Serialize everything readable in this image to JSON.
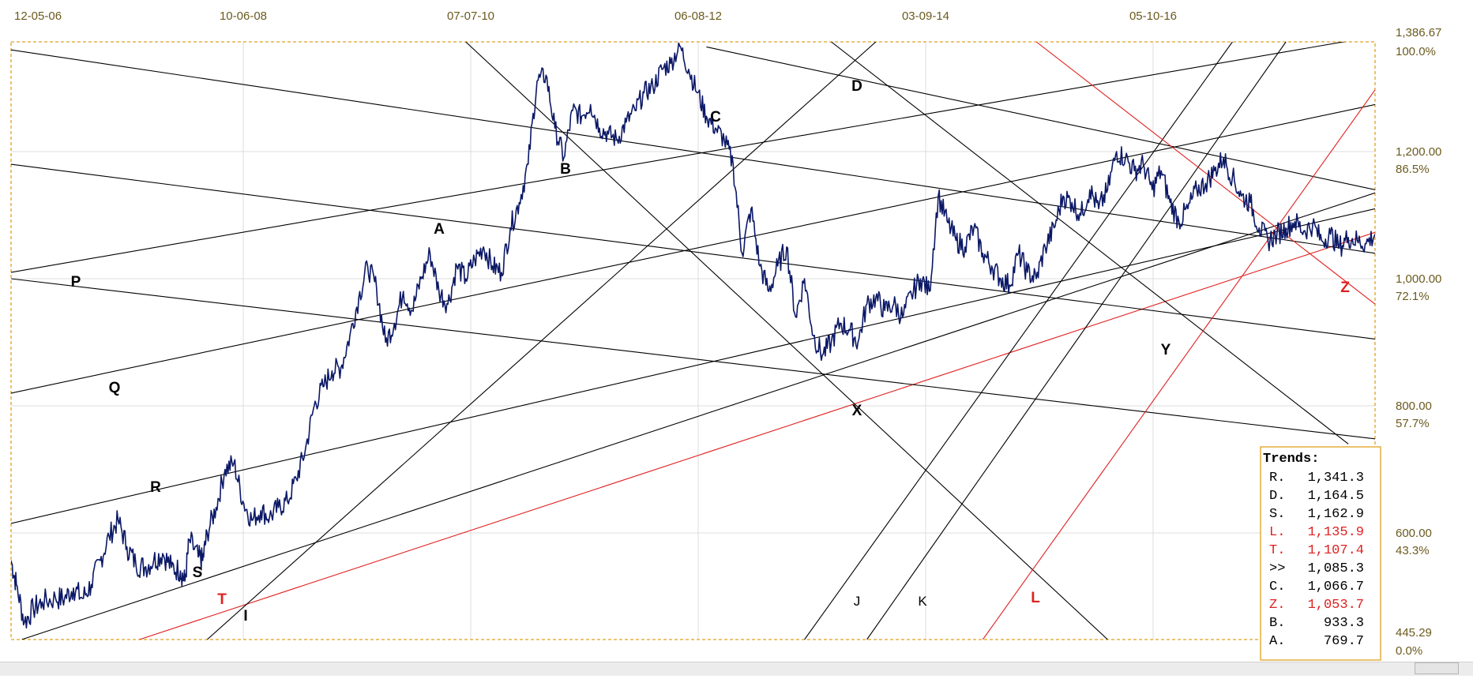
{
  "chart_data": {
    "type": "line",
    "title": "",
    "xlabel": "",
    "ylabel": "",
    "x_tick_labels": [
      "12-05-06",
      "10-06-08",
      "07-07-10",
      "06-08-12",
      "03-09-14",
      "05-10-16"
    ],
    "y_ticks": [
      {
        "value": "1,386.67",
        "pct": "100.0%"
      },
      {
        "value": "1,200.00",
        "pct": "86.5%"
      },
      {
        "value": "1,000.00",
        "pct": "72.1%"
      },
      {
        "value": "800.00",
        "pct": "57.7%"
      },
      {
        "value": "600.00",
        "pct": "43.3%"
      },
      {
        "value": "445.29",
        "pct": "0.0%"
      }
    ],
    "ylim": [
      445.29,
      1386.67
    ],
    "grid": true,
    "price_series": {
      "color": "#0b1866",
      "points": [
        [
          0.0,
          560
        ],
        [
          0.6,
          525
        ],
        [
          1.5,
          470
        ],
        [
          2.5,
          490
        ],
        [
          3.5,
          500
        ],
        [
          5,
          505
        ],
        [
          6,
          505
        ],
        [
          7,
          520
        ],
        [
          8,
          505
        ],
        [
          9,
          525
        ],
        [
          10,
          560
        ],
        [
          11,
          595
        ],
        [
          12,
          620
        ],
        [
          13,
          580
        ],
        [
          14,
          555
        ],
        [
          15,
          550
        ],
        [
          16,
          560
        ],
        [
          17,
          570
        ],
        [
          18,
          550
        ],
        [
          19,
          545
        ],
        [
          19.5,
          530
        ],
        [
          20,
          590
        ],
        [
          21,
          565
        ],
        [
          21.5,
          560
        ],
        [
          22,
          600
        ],
        [
          23,
          640
        ],
        [
          24,
          700
        ],
        [
          25,
          710
        ],
        [
          26,
          650
        ],
        [
          27,
          620
        ],
        [
          28,
          635
        ],
        [
          29,
          625
        ],
        [
          30,
          640
        ],
        [
          31,
          650
        ],
        [
          32,
          685
        ],
        [
          33,
          730
        ],
        [
          34,
          800
        ],
        [
          35,
          830
        ],
        [
          36,
          855
        ],
        [
          37,
          860
        ],
        [
          38,
          910
        ],
        [
          39,
          970
        ],
        [
          40,
          1020
        ],
        [
          41,
          985
        ],
        [
          42,
          900
        ],
        [
          43,
          930
        ],
        [
          44,
          980
        ],
        [
          45,
          950
        ],
        [
          46,
          1000
        ],
        [
          47,
          1040
        ],
        [
          48,
          980
        ],
        [
          49,
          960
        ],
        [
          50,
          1020
        ],
        [
          51,
          1000
        ],
        [
          52,
          1030
        ],
        [
          53,
          1050
        ],
        [
          54,
          1020
        ],
        [
          55,
          1010
        ],
        [
          56,
          1080
        ],
        [
          57,
          1120
        ],
        [
          58,
          1180
        ],
        [
          59,
          1320
        ],
        [
          60,
          1330
        ],
        [
          61,
          1240
        ],
        [
          62,
          1190
        ],
        [
          63,
          1270
        ],
        [
          64,
          1260
        ],
        [
          65,
          1280
        ],
        [
          66,
          1240
        ],
        [
          67,
          1230
        ],
        [
          68,
          1220
        ],
        [
          69,
          1250
        ],
        [
          70,
          1270
        ],
        [
          71,
          1300
        ],
        [
          72,
          1310
        ],
        [
          73,
          1340
        ],
        [
          74,
          1350
        ],
        [
          75,
          1380
        ],
        [
          76,
          1340
        ],
        [
          77,
          1300
        ],
        [
          78,
          1260
        ],
        [
          79,
          1240
        ],
        [
          80,
          1220
        ],
        [
          81,
          1180
        ],
        [
          82,
          1040
        ],
        [
          83,
          1110
        ],
        [
          84,
          1020
        ],
        [
          85,
          980
        ],
        [
          86,
          1020
        ],
        [
          87,
          1050
        ],
        [
          88,
          940
        ],
        [
          89,
          1000
        ],
        [
          90,
          910
        ],
        [
          91,
          880
        ],
        [
          92,
          900
        ],
        [
          93,
          930
        ],
        [
          94,
          920
        ],
        [
          95,
          900
        ],
        [
          96,
          960
        ],
        [
          97,
          970
        ],
        [
          98,
          950
        ],
        [
          99,
          960
        ],
        [
          100,
          940
        ],
        [
          101,
          975
        ],
        [
          102,
          1000
        ],
        [
          103,
          980
        ],
        [
          104,
          1130
        ],
        [
          105,
          1090
        ],
        [
          106,
          1060
        ],
        [
          107,
          1050
        ],
        [
          108,
          1080
        ],
        [
          109,
          1040
        ],
        [
          110,
          1020
        ],
        [
          111,
          1000
        ],
        [
          112,
          990
        ],
        [
          113,
          1040
        ],
        [
          114,
          1010
        ],
        [
          115,
          1000
        ],
        [
          116,
          1050
        ],
        [
          117,
          1080
        ],
        [
          118,
          1130
        ],
        [
          119,
          1120
        ],
        [
          120,
          1100
        ],
        [
          121,
          1140
        ],
        [
          122,
          1110
        ],
        [
          123,
          1140
        ],
        [
          124,
          1200
        ],
        [
          125,
          1190
        ],
        [
          126,
          1170
        ],
        [
          127,
          1180
        ],
        [
          128,
          1140
        ],
        [
          129,
          1170
        ],
        [
          130,
          1120
        ],
        [
          131,
          1090
        ],
        [
          132,
          1110
        ],
        [
          133,
          1140
        ],
        [
          134,
          1150
        ],
        [
          135,
          1170
        ],
        [
          136,
          1190
        ],
        [
          137,
          1160
        ],
        [
          138,
          1130
        ],
        [
          139,
          1120
        ],
        [
          140,
          1080
        ],
        [
          141,
          1060
        ],
        [
          142,
          1070
        ],
        [
          143,
          1080
        ],
        [
          144,
          1090
        ],
        [
          145,
          1075
        ],
        [
          146,
          1085
        ],
        [
          147,
          1060
        ],
        [
          148,
          1070
        ],
        [
          149,
          1050
        ],
        [
          150,
          1065
        ],
        [
          151,
          1060
        ],
        [
          152,
          1055
        ],
        [
          153,
          1070
        ]
      ]
    },
    "trend_lines": [
      {
        "id": "P",
        "label": "P",
        "color": "#000000",
        "label_color": "#000000",
        "x1": 0,
        "y1": 1010,
        "x2": 153,
        "y2": 1396
      },
      {
        "id": "Q",
        "label": "Q",
        "color": "#000000",
        "label_color": "#000000",
        "x1": 0,
        "y1": 820,
        "x2": 153,
        "y2": 1280
      },
      {
        "id": "R",
        "label": "R",
        "color": "#000000",
        "label_color": "#000000",
        "x1": 0,
        "y1": 615,
        "x2": 153,
        "y2": 1110
      },
      {
        "id": "S",
        "label": "S",
        "color": "#000000",
        "label_color": "#000000",
        "x1": 1.2,
        "y1": 445.29,
        "x2": 153,
        "y2": 1135
      },
      {
        "id": "T",
        "label": "T",
        "color": "#e02020",
        "label_color": "#e02020",
        "x1": 14.4,
        "y1": 445.29,
        "x2": 153,
        "y2": 1073
      },
      {
        "id": "D",
        "label": "D",
        "color": "#000000",
        "label_color": "#000000",
        "x1": 78,
        "y1": 1378,
        "x2": 153,
        "y2": 1140
      },
      {
        "id": "C",
        "label": "C",
        "color": "#000000",
        "label_color": "#000000",
        "x1": 0,
        "y1": 1373,
        "x2": 153,
        "y2": 1040
      },
      {
        "id": "A",
        "label": "A",
        "color": "#000000",
        "label_color": "#000000",
        "x1": 0,
        "y1": 1180,
        "x2": 153,
        "y2": 905
      },
      {
        "id": "Y",
        "label": "Y",
        "color": "#000000",
        "label_color": "#000000",
        "x1": 0,
        "y1": 1000,
        "x2": 153,
        "y2": 748
      },
      {
        "id": "I",
        "label": "I",
        "color": "#000000",
        "label_color": "#000000",
        "x1": 22,
        "y1": 445.29,
        "x2": 97,
        "y2": 1386.67
      },
      {
        "id": "B",
        "label": "B",
        "color": "#000000",
        "label_color": "#000000",
        "x1": 51,
        "y1": 1386.67,
        "x2": 123,
        "y2": 445.29
      },
      {
        "id": "X",
        "label": "X",
        "color": "#000000",
        "label_color": "#000000",
        "x1": 92,
        "y1": 1386.67,
        "x2": 150,
        "y2": 740
      },
      {
        "id": "J",
        "label": "J",
        "color": "#000000",
        "label_color": "#000000",
        "x1": 89,
        "y1": 445.29,
        "x2": 137,
        "y2": 1386.67
      },
      {
        "id": "K",
        "label": "K",
        "color": "#000000",
        "label_color": "#000000",
        "x1": 96,
        "y1": 445.29,
        "x2": 143,
        "y2": 1386.67
      },
      {
        "id": "L",
        "label": "L",
        "color": "#e02020",
        "label_color": "#e02020",
        "x1": 109,
        "y1": 445.29,
        "x2": 153,
        "y2": 1305
      },
      {
        "id": "Z",
        "label": "Z",
        "color": "#e02020",
        "label_color": "#e02020",
        "x1": 115,
        "y1": 1386.67,
        "x2": 153,
        "y2": 960
      }
    ],
    "legend": {
      "title": "Trends:",
      "placement": "bottom-right",
      "entries": [
        {
          "key": "R.",
          "value": "1,341.3",
          "color": "#000000"
        },
        {
          "key": "D.",
          "value": "1,164.5",
          "color": "#000000"
        },
        {
          "key": "S.",
          "value": "1,162.9",
          "color": "#000000"
        },
        {
          "key": "L.",
          "value": "1,135.9",
          "color": "#e02020"
        },
        {
          "key": "T.",
          "value": "1,107.4",
          "color": "#e02020"
        },
        {
          "key": ">>",
          "value": "1,085.3",
          "color": "#000000"
        },
        {
          "key": "C.",
          "value": "1,066.7",
          "color": "#000000"
        },
        {
          "key": "Z.",
          "value": "1,053.7",
          "color": "#e02020"
        },
        {
          "key": "B.",
          "value": "933.3",
          "color": "#000000"
        },
        {
          "key": "A.",
          "value": "769.7",
          "color": "#000000"
        }
      ]
    }
  },
  "colors": {
    "frame": "#e0a020",
    "grid": "#dcdcdc",
    "tick_text": "#6b5a1e"
  }
}
